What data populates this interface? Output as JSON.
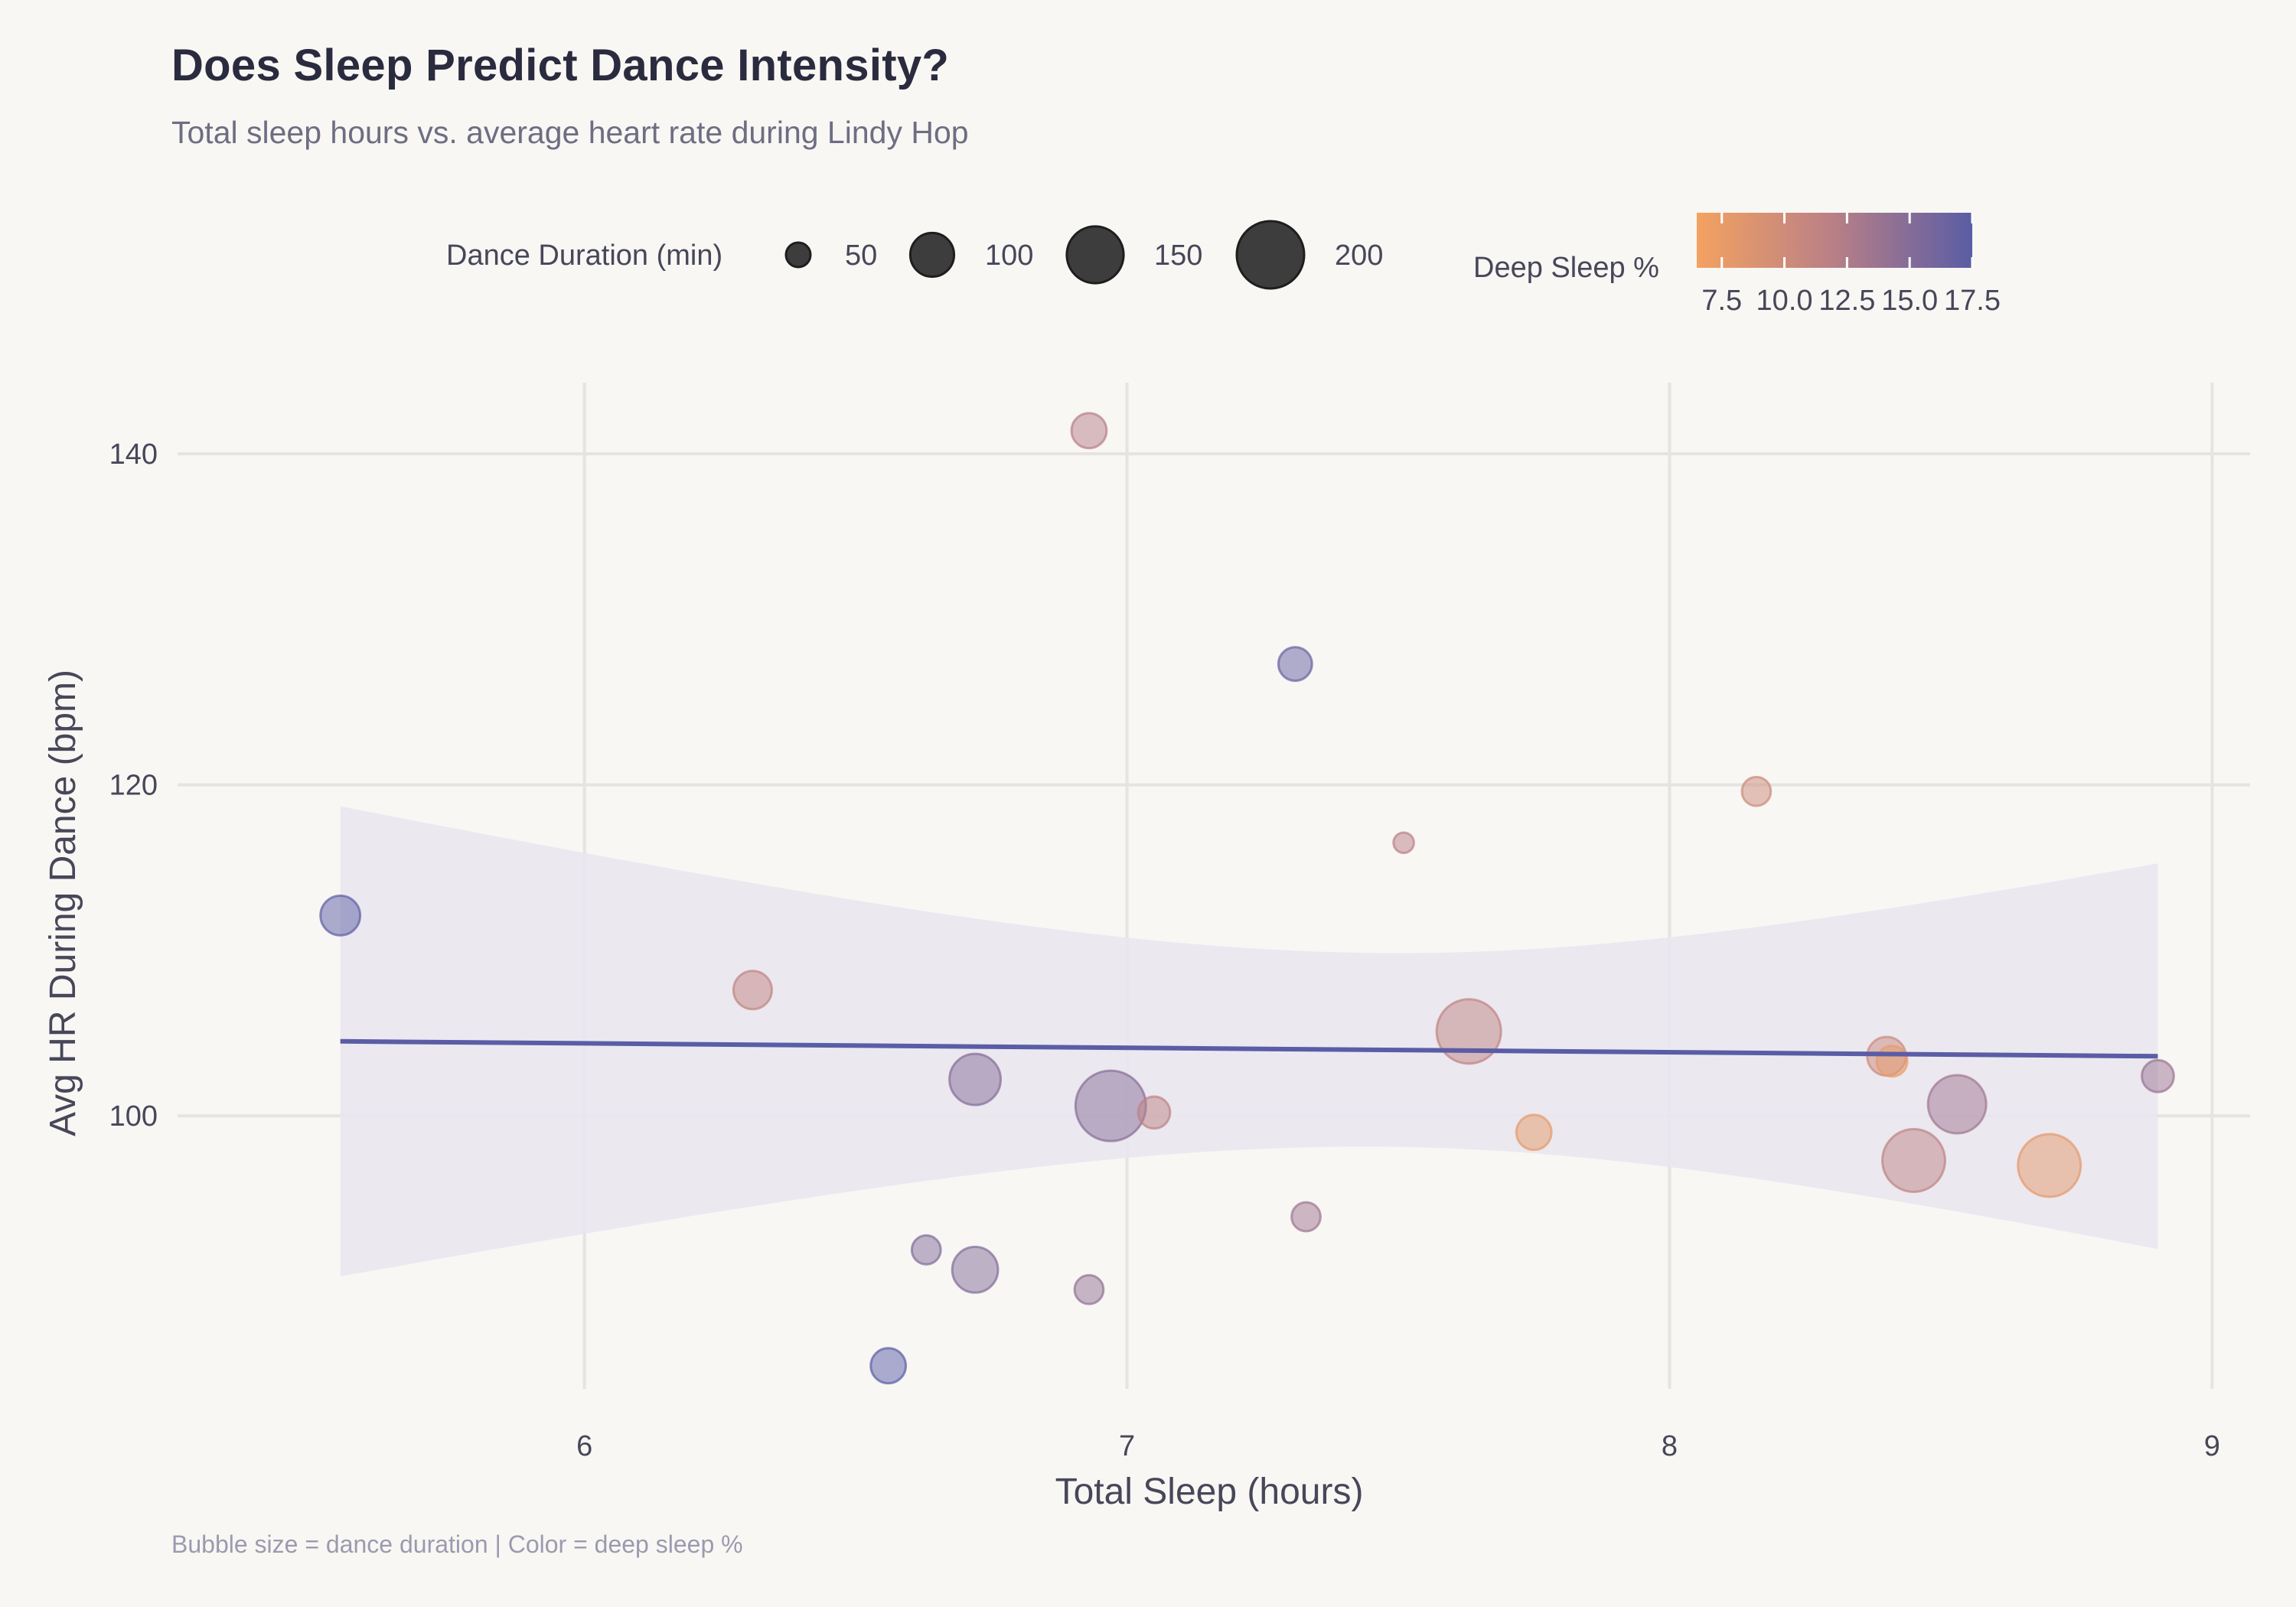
{
  "title": "Does Sleep Predict Dance Intensity?",
  "subtitle": "Total sleep hours vs. average heart rate during Lindy Hop",
  "caption": "Bubble size = dance duration | Color = deep sleep %",
  "colors": {
    "background": "#F8F7F4",
    "grid": "#E6E4E0",
    "regression_line": "#5A5DA5",
    "confidence_band": "#E9E6F0",
    "color_low": "#F4A261",
    "color_mid": "#B87F87",
    "color_high": "#5A5DA5",
    "legend_bubble": "#3D3D3D"
  },
  "chart_data": {
    "type": "scatter",
    "subtype": "bubble",
    "title": "Does Sleep Predict Dance Intensity?",
    "subtitle": "Total sleep hours vs. average heart rate during Lindy Hop",
    "xlabel": "Total Sleep (hours)",
    "ylabel": "Avg HR During Dance (bpm)",
    "xlim": [
      5.25,
      9.07
    ],
    "ylim": [
      83.5,
      144.3
    ],
    "xticks": [
      6,
      7,
      8,
      9
    ],
    "xtick_labels": [
      "6",
      "7",
      "8",
      "9"
    ],
    "yticks": [
      100,
      120,
      140
    ],
    "ytick_labels": [
      "100",
      "120",
      "140"
    ],
    "grid": true,
    "size_legend": {
      "title": "Dance Duration (min)",
      "values": [
        50,
        100,
        150,
        200
      ],
      "labels": [
        "50",
        "100",
        "150",
        "200"
      ],
      "placement": "top-center"
    },
    "color_legend": {
      "title": "Deep Sleep %",
      "range": [
        6.5,
        17.5
      ],
      "ticks": [
        7.5,
        10.0,
        12.5,
        15.0,
        17.5
      ],
      "tick_labels": [
        "7.5",
        "10.0",
        "12.5",
        "15.0",
        "17.5"
      ],
      "placement": "top-right"
    },
    "points": [
      {
        "sleep": 5.55,
        "hr": 112.1,
        "duration": 87,
        "deep": 17.3
      },
      {
        "sleep": 6.31,
        "hr": 107.6,
        "duration": 83,
        "deep": 11.2
      },
      {
        "sleep": 6.72,
        "hr": 102.2,
        "duration": 127,
        "deep": 15.0
      },
      {
        "sleep": 6.97,
        "hr": 100.6,
        "duration": 216,
        "deep": 14.8
      },
      {
        "sleep": 7.05,
        "hr": 100.2,
        "duration": 66,
        "deep": 11.5
      },
      {
        "sleep": 6.63,
        "hr": 91.9,
        "duration": 59,
        "deep": 15.3
      },
      {
        "sleep": 6.72,
        "hr": 90.7,
        "duration": 107,
        "deep": 15.2
      },
      {
        "sleep": 6.56,
        "hr": 84.9,
        "duration": 74,
        "deep": 17.6
      },
      {
        "sleep": 6.93,
        "hr": 89.5,
        "duration": 59,
        "deep": 14.2
      },
      {
        "sleep": 6.93,
        "hr": 141.4,
        "duration": 74,
        "deep": 12.0
      },
      {
        "sleep": 7.31,
        "hr": 127.3,
        "duration": 70,
        "deep": 16.8
      },
      {
        "sleep": 7.33,
        "hr": 93.9,
        "duration": 59,
        "deep": 13.6
      },
      {
        "sleep": 7.51,
        "hr": 116.5,
        "duration": 43,
        "deep": 11.8
      },
      {
        "sleep": 7.63,
        "hr": 105.1,
        "duration": 185,
        "deep": 11.3
      },
      {
        "sleep": 7.75,
        "hr": 99.0,
        "duration": 74,
        "deep": 7.8
      },
      {
        "sleep": 8.16,
        "hr": 119.6,
        "duration": 59,
        "deep": 10.3
      },
      {
        "sleep": 8.4,
        "hr": 103.6,
        "duration": 84,
        "deep": 10.2
      },
      {
        "sleep": 8.41,
        "hr": 103.3,
        "duration": 63,
        "deep": 7.6
      },
      {
        "sleep": 8.53,
        "hr": 100.7,
        "duration": 156,
        "deep": 13.4
      },
      {
        "sleep": 8.45,
        "hr": 97.3,
        "duration": 177,
        "deep": 11.4
      },
      {
        "sleep": 8.7,
        "hr": 97.0,
        "duration": 177,
        "deep": 7.9
      },
      {
        "sleep": 8.9,
        "hr": 102.4,
        "duration": 66,
        "deep": 13.8
      }
    ],
    "regression": {
      "x_range": [
        5.55,
        8.9
      ],
      "y_at_start": 104.5,
      "y_at_end": 103.6,
      "confidence_band": [
        {
          "sleep": 5.55,
          "lower": 90.3,
          "upper": 118.7
        },
        {
          "sleep": 7.47,
          "lower": 98.2,
          "upper": 109.9
        },
        {
          "sleep": 8.9,
          "lower": 91.9,
          "upper": 115.2
        }
      ]
    }
  }
}
